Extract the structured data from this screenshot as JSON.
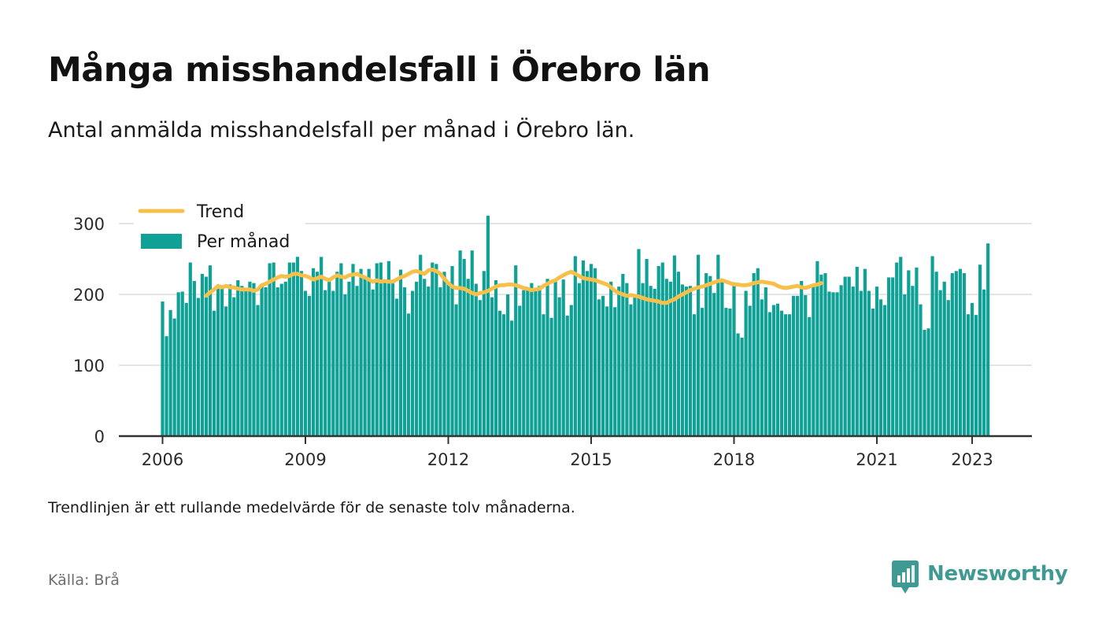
{
  "title": "Många misshandelsfall i Örebro län",
  "subtitle": "Antal anmälda misshandelsfall per månad i Örebro län.",
  "note": "Trendlinjen är ett rullande medelvärde för de senaste tolv månaderna.",
  "source": "Källa: Brå",
  "logo_text": "Newsworthy",
  "colors": {
    "bars": "#0fa196",
    "trend": "#f7c04b",
    "grid": "#dcdcdc",
    "axis": "#333333",
    "logo": "#3f9a94"
  },
  "chart_data": {
    "type": "bar",
    "start_month": "2006-01",
    "end_month": "2023-05",
    "ylim": [
      0,
      320
    ],
    "yticks": [
      0,
      100,
      200,
      300
    ],
    "ytick_labels": [
      "0",
      "100",
      "200",
      "300"
    ],
    "xticks": [
      {
        "label": "2006",
        "month": "2006-01"
      },
      {
        "label": "2009",
        "month": "2009-01"
      },
      {
        "label": "2012",
        "month": "2012-01"
      },
      {
        "label": "2015",
        "month": "2015-01"
      },
      {
        "label": "2018",
        "month": "2018-01"
      },
      {
        "label": "2021",
        "month": "2021-01"
      },
      {
        "label": "2023",
        "month": "2023-01"
      }
    ],
    "grid": true,
    "legend": {
      "position": "top-left",
      "entries": [
        "Trend",
        "Per månad"
      ]
    },
    "series": [
      {
        "name": "Per månad",
        "type": "bar",
        "values": [
          190,
          141,
          178,
          166,
          203,
          204,
          188,
          245,
          219,
          195,
          229,
          225,
          241,
          177,
          208,
          212,
          183,
          214,
          196,
          220,
          212,
          205,
          218,
          216,
          185,
          212,
          210,
          244,
          245,
          210,
          215,
          218,
          245,
          245,
          253,
          233,
          205,
          198,
          237,
          232,
          253,
          206,
          223,
          205,
          232,
          244,
          200,
          218,
          243,
          212,
          236,
          222,
          236,
          207,
          244,
          245,
          220,
          247,
          216,
          194,
          235,
          210,
          173,
          205,
          218,
          256,
          222,
          211,
          245,
          243,
          210,
          232,
          218,
          240,
          186,
          262,
          250,
          222,
          262,
          215,
          192,
          233,
          311,
          196,
          220,
          177,
          172,
          200,
          163,
          241,
          184,
          206,
          210,
          216,
          205,
          212,
          172,
          222,
          167,
          220,
          196,
          221,
          170,
          185,
          254,
          216,
          248,
          233,
          243,
          237,
          193,
          198,
          183,
          218,
          182,
          211,
          229,
          216,
          186,
          196,
          264,
          216,
          250,
          212,
          208,
          240,
          245,
          222,
          218,
          255,
          232,
          214,
          211,
          212,
          172,
          256,
          181,
          230,
          226,
          202,
          256,
          220,
          181,
          180,
          217,
          145,
          139,
          205,
          184,
          230,
          237,
          193,
          210,
          175,
          185,
          187,
          177,
          172,
          172,
          198,
          198,
          219,
          199,
          168,
          214,
          247,
          228,
          230,
          204,
          203,
          203,
          213,
          225,
          225,
          211,
          239,
          205,
          236,
          205,
          180,
          211,
          193,
          185,
          224,
          224,
          245,
          253,
          200,
          234,
          212,
          238,
          186,
          150,
          152,
          254,
          232,
          206,
          218,
          192,
          230,
          233,
          236,
          230,
          172,
          188,
          171,
          242,
          207,
          272
        ]
      },
      {
        "name": "Trend",
        "type": "line",
        "start_month": "2006-12",
        "values": [
          198,
          203,
          207,
          212,
          210,
          212,
          210,
          210,
          208,
          207,
          207,
          207,
          205,
          207,
          213,
          215,
          218,
          221,
          224,
          226,
          225,
          226,
          229,
          229,
          227,
          226,
          224,
          221,
          223,
          225,
          222,
          220,
          224,
          227,
          225,
          224,
          227,
          228,
          229,
          226,
          224,
          221,
          218,
          220,
          218,
          219,
          218,
          218,
          221,
          224,
          226,
          229,
          232,
          233,
          231,
          229,
          234,
          235,
          233,
          229,
          222,
          216,
          211,
          209,
          209,
          208,
          205,
          202,
          200,
          202,
          203,
          205,
          208,
          211,
          213,
          213,
          214,
          214,
          213,
          211,
          209,
          208,
          206,
          207,
          208,
          212,
          215,
          218,
          220,
          224,
          227,
          230,
          232,
          229,
          226,
          223,
          222,
          221,
          220,
          218,
          216,
          214,
          210,
          205,
          202,
          200,
          198,
          199,
          198,
          197,
          195,
          193,
          192,
          191,
          190,
          188,
          188,
          191,
          193,
          197,
          200,
          203,
          206,
          208,
          210,
          211,
          213,
          215,
          217,
          219,
          220,
          218,
          216,
          214,
          214,
          213,
          213,
          214,
          216,
          217,
          218,
          217,
          216,
          215,
          212,
          210,
          209,
          210,
          211,
          212,
          210,
          209,
          211,
          213,
          214,
          216
        ]
      }
    ]
  }
}
